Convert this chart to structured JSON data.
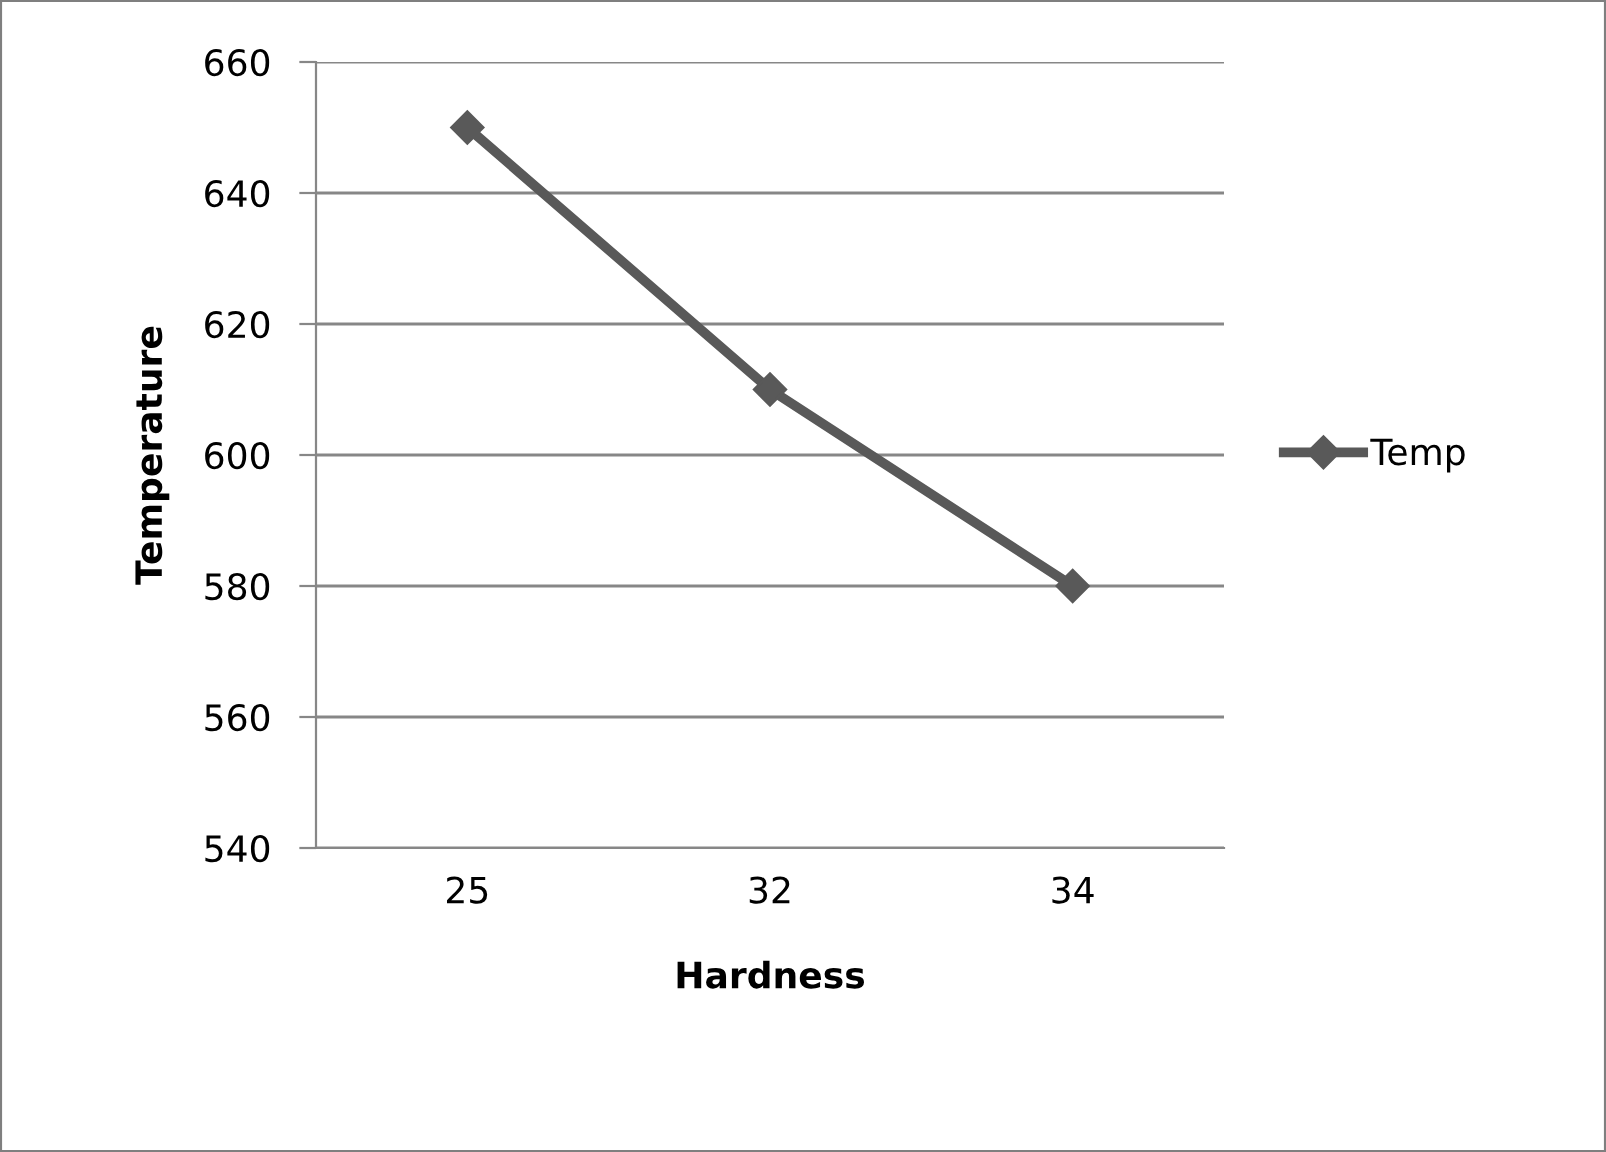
{
  "chart_data": {
    "type": "line",
    "xlabel": "Hardness",
    "ylabel": "Temperature",
    "categories": [
      "25",
      "32",
      "34"
    ],
    "series": [
      {
        "name": "Temp",
        "color": "#595959",
        "values": [
          650,
          610,
          580
        ]
      }
    ],
    "ylim": [
      540,
      660
    ],
    "yticks": [
      540,
      560,
      580,
      600,
      620,
      640,
      660
    ],
    "grid": "y",
    "legend": "right",
    "marker": "diamond",
    "line_style": "solid"
  }
}
